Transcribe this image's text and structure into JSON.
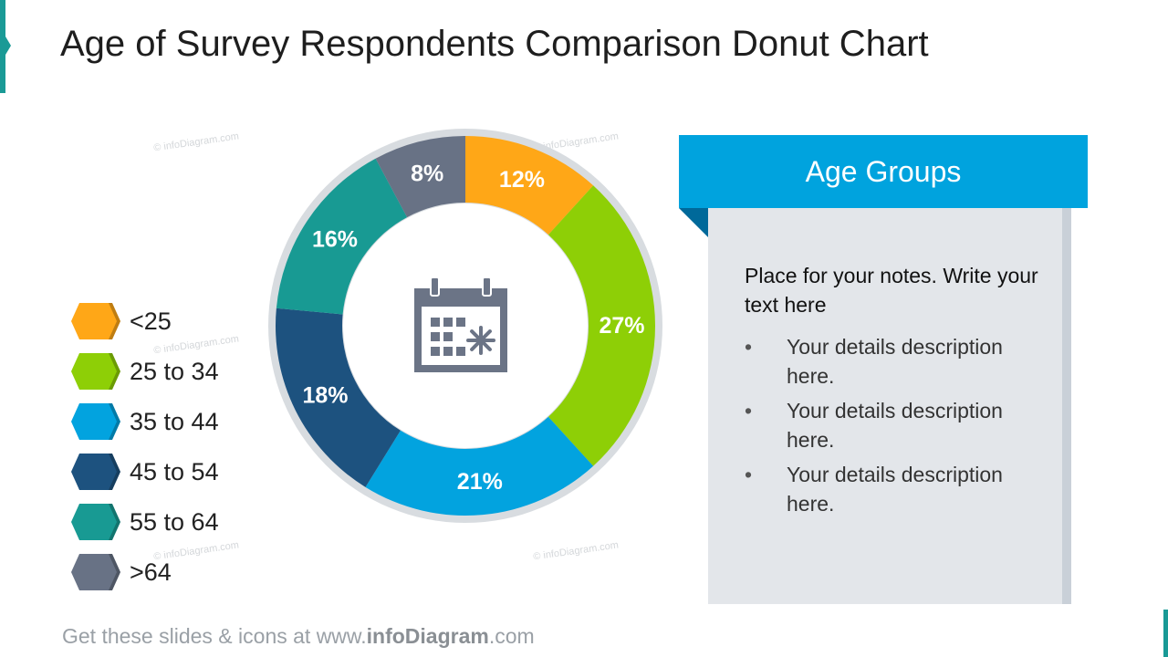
{
  "title": "Age of Survey Respondents Comparison Donut Chart",
  "colors": {
    "accent": "#1a9a96",
    "header": "#00a3de",
    "fold": "#00699a",
    "panel": "#e3e6ea",
    "ring": "#d8dce0",
    "icon": "#6b7486"
  },
  "chart_data": {
    "type": "pie",
    "style": "donut",
    "title": "",
    "center_icon": "calendar-icon",
    "categories": [
      "<25",
      "25 to 34",
      "35 to 44",
      "45 to 54",
      "55 to 64",
      ">64"
    ],
    "values": [
      12,
      27,
      21,
      18,
      16,
      8
    ],
    "labels": [
      "12%",
      "27%",
      "21%",
      "18%",
      "16%",
      "8%"
    ],
    "colors": [
      "#ffa717",
      "#8ecf06",
      "#02a3df",
      "#1d527f",
      "#189a93",
      "#687285"
    ],
    "legend_position": "left"
  },
  "panel": {
    "header": "Age Groups",
    "intro": "Place for your notes. Write your text here",
    "bullets": [
      "Your details description here.",
      "Your details description here.",
      "Your details description here."
    ],
    "bullet_char": "•"
  },
  "footer": {
    "prefix": "Get these slides & icons at www.",
    "brand": "infoDiagram",
    "suffix": ".com"
  },
  "watermark": "© infoDiagram.com"
}
